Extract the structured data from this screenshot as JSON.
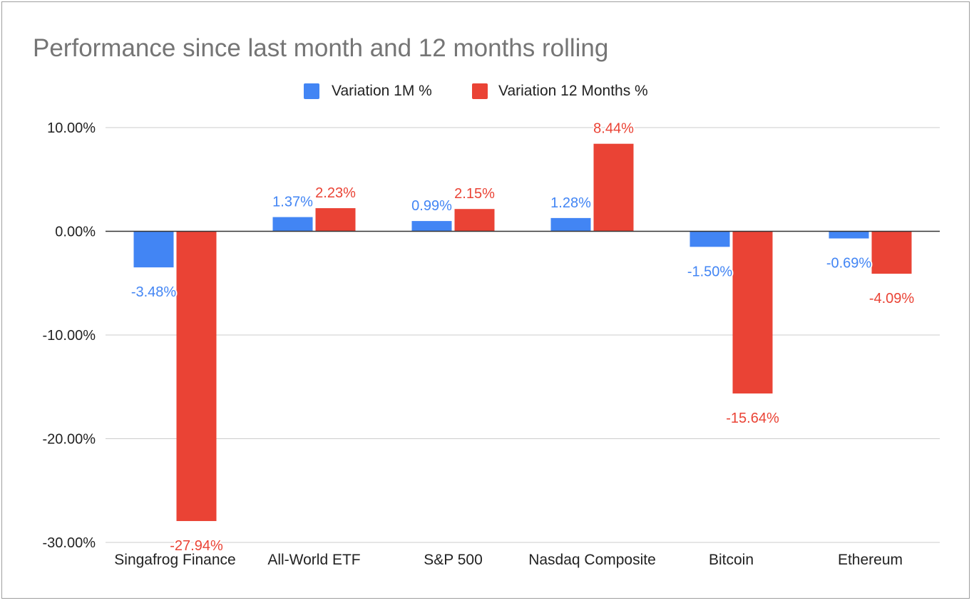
{
  "chart_data": {
    "type": "bar",
    "title": "Performance since last month and 12 months rolling",
    "categories": [
      "Singafrog Finance",
      "All-World ETF",
      "S&P 500",
      "Nasdaq Composite",
      "Bitcoin",
      "Ethereum"
    ],
    "series": [
      {
        "name": "Variation 1M %",
        "color": "#4285f4",
        "values": [
          -3.48,
          1.37,
          0.99,
          1.28,
          -1.5,
          -0.69
        ],
        "labels": [
          "-3.48%",
          "1.37%",
          "0.99%",
          "1.28%",
          "-1.50%",
          "-0.69%"
        ]
      },
      {
        "name": "Variation 12 Months %",
        "color": "#ea4335",
        "values": [
          -27.94,
          2.23,
          2.15,
          8.44,
          -15.64,
          -4.09
        ],
        "labels": [
          "-27.94%",
          "2.23%",
          "2.15%",
          "8.44%",
          "-15.64%",
          "-4.09%"
        ]
      }
    ],
    "ylim": [
      -30,
      10
    ],
    "yticks": [
      10,
      0,
      -10,
      -20,
      -30
    ],
    "ytick_labels": [
      "10.00%",
      "0.00%",
      "-10.00%",
      "-20.00%",
      "-30.00%"
    ],
    "grid": true,
    "legend_position": "top-center",
    "xlabel": "",
    "ylabel": ""
  }
}
